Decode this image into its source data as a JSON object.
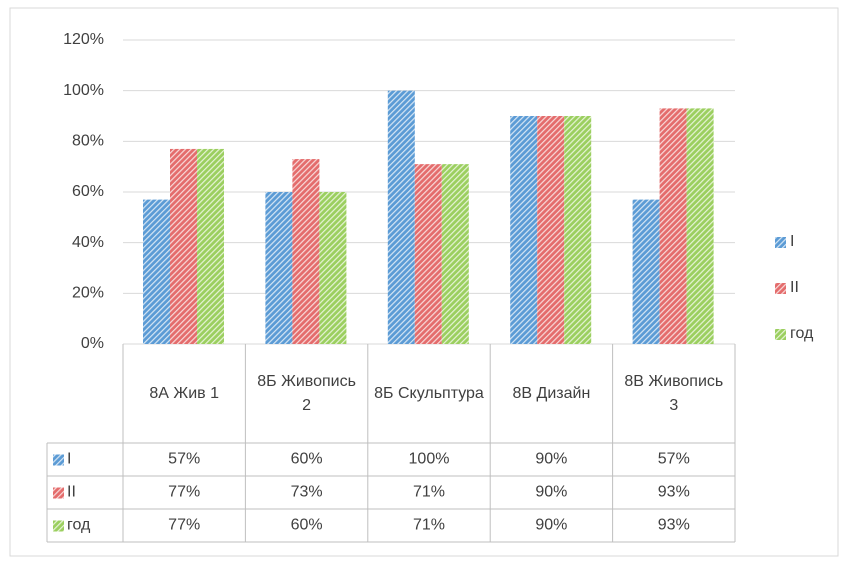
{
  "chart_data": {
    "type": "bar",
    "categories": [
      "8А  Жив 1",
      "8Б Живопись 2",
      "8Б Скульптура",
      "8В Дизайн",
      "8В Живопись 3"
    ],
    "series": [
      {
        "name": "I",
        "color": "#5b9bd5",
        "values": [
          57,
          60,
          100,
          90,
          57
        ],
        "value_labels": [
          "57%",
          "60%",
          "100%",
          "90%",
          "57%"
        ]
      },
      {
        "name": "II",
        "color": "#e46c6c",
        "values": [
          77,
          73,
          71,
          90,
          93
        ],
        "value_labels": [
          "77%",
          "73%",
          "71%",
          "90%",
          "93%"
        ]
      },
      {
        "name": "год",
        "color": "#9bcf5f",
        "values": [
          77,
          60,
          71,
          90,
          93
        ],
        "value_labels": [
          "77%",
          "60%",
          "71%",
          "90%",
          "93%"
        ]
      }
    ],
    "ylim": [
      0,
      120
    ],
    "yticks": [
      {
        "value": 0,
        "label": "0%"
      },
      {
        "value": 20,
        "label": "20%"
      },
      {
        "value": 40,
        "label": "40%"
      },
      {
        "value": 60,
        "label": "60%"
      },
      {
        "value": 80,
        "label": "80%"
      },
      {
        "value": 100,
        "label": "100%"
      },
      {
        "value": 120,
        "label": "120%"
      }
    ],
    "grid": true,
    "legend": "right",
    "data_table": true
  }
}
